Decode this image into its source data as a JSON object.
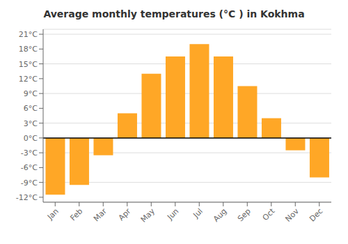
{
  "chart_data": {
    "type": "bar",
    "title": "Average monthly temperatures (°C ) in Kokhma",
    "categories": [
      "Jan",
      "Feb",
      "Mar",
      "Apr",
      "May",
      "Jun",
      "Jul",
      "Aug",
      "Sep",
      "Oct",
      "Nov",
      "Dec"
    ],
    "values": [
      -11.5,
      -9.5,
      -3.5,
      5.0,
      13.0,
      16.5,
      19.0,
      16.5,
      10.5,
      4.0,
      -2.5,
      -8.0
    ],
    "color": "#FFA726",
    "ylim": [
      -13,
      22
    ],
    "yticks": [
      {
        "value": -12,
        "label": "-12°C"
      },
      {
        "value": -9,
        "label": "-9°C"
      },
      {
        "value": -6,
        "label": "-6°C"
      },
      {
        "value": -3,
        "label": "-3°C"
      },
      {
        "value": 0,
        "label": "0°C"
      },
      {
        "value": 3,
        "label": "3°C"
      },
      {
        "value": 6,
        "label": "6°C"
      },
      {
        "value": 9,
        "label": "9°C"
      },
      {
        "value": 12,
        "label": "12°C"
      },
      {
        "value": 15,
        "label": "15°C"
      },
      {
        "value": 18,
        "label": "18°C"
      },
      {
        "value": 21,
        "label": "21°C"
      }
    ],
    "grid": true
  }
}
